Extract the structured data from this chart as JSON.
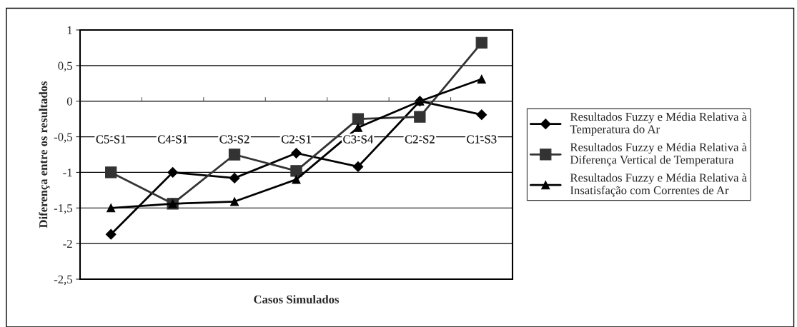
{
  "chart_data": {
    "type": "line",
    "xlabel": "Casos Simulados",
    "ylabel": "Diferença entre os resultados",
    "categories": [
      "C5-S1",
      "C4-S1",
      "C3-S2",
      "C2-S1",
      "C3-S4",
      "C2-S2",
      "C1-S3"
    ],
    "series": [
      {
        "name": "Resultados Fuzzy e Média Relativa à Temperatura do Ar",
        "color": "#000000",
        "marker": "diamond",
        "values": [
          -1.87,
          -1.0,
          -1.08,
          -0.73,
          -0.92,
          0.0,
          -0.19
        ]
      },
      {
        "name": "Resultados Fuzzy e Média Relativa à Diferença Vertical de Temperatura",
        "color": "#333333",
        "marker": "square",
        "values": [
          -1.0,
          -1.44,
          -0.75,
          -0.98,
          -0.25,
          -0.22,
          0.82
        ]
      },
      {
        "name": "Resultados Fuzzy e Média Relativa à Insatisfação com Correntes de Ar",
        "color": "#000000",
        "marker": "triangle",
        "values": [
          -1.5,
          -1.44,
          -1.41,
          -1.1,
          -0.37,
          0.0,
          0.31
        ]
      }
    ],
    "ylim": [
      -2.5,
      1
    ],
    "yticks": [
      {
        "value": -2.5,
        "label": "-2,5"
      },
      -2,
      {
        "value": -1.5,
        "label": "-1,5"
      },
      -1,
      {
        "value": -0.5,
        "label": "-0,5"
      },
      0,
      {
        "value": 0.5,
        "label": "0,5"
      },
      1
    ],
    "grid": "y",
    "legend": "right",
    "line_style": "solid"
  }
}
